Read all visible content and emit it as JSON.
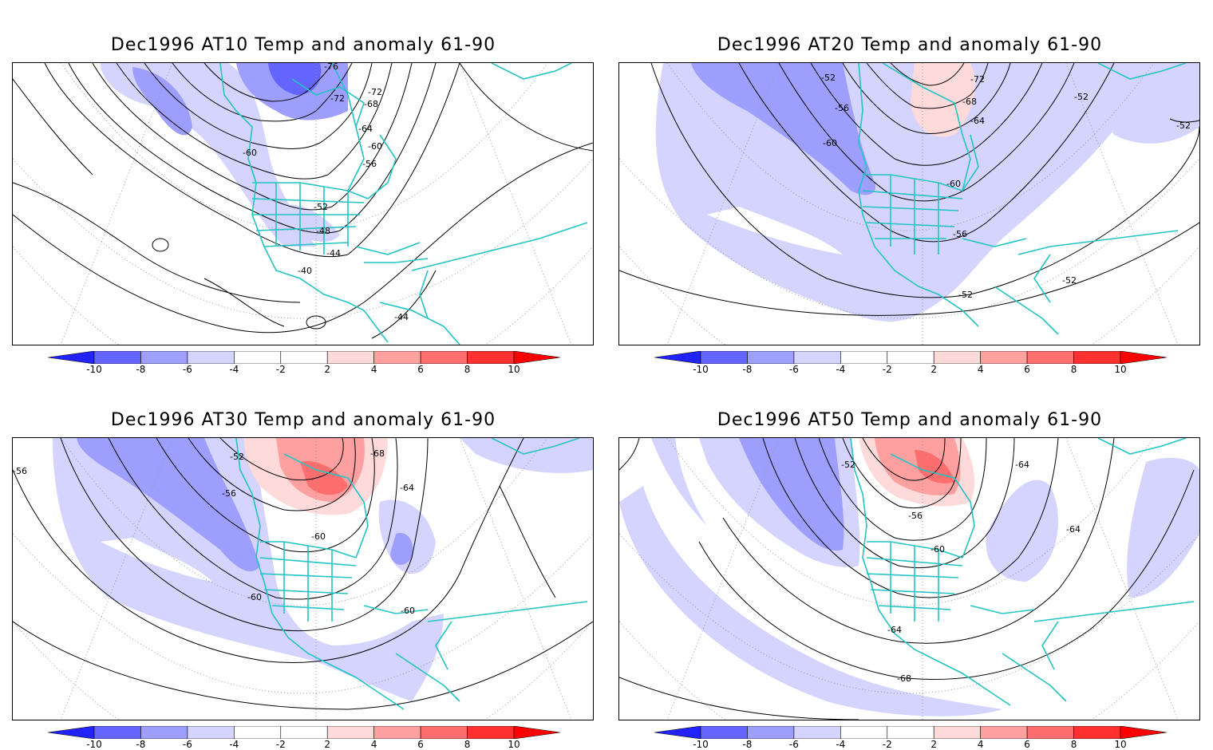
{
  "panels": [
    {
      "title": "Dec1996 AT10 Temp and anomaly 61-90",
      "contour_labels": [
        "-76",
        "-72",
        "-72",
        "-68",
        "-64",
        "-60",
        "-60",
        "-56",
        "-52",
        "-48",
        "-44",
        "-40",
        "-44"
      ]
    },
    {
      "title": "Dec1996 AT20 Temp and anomaly 61-90",
      "contour_labels": [
        "-52",
        "-72",
        "-56",
        "-68",
        "-64",
        "-60",
        "-60",
        "-52",
        "-52",
        "-56",
        "-52",
        "-52"
      ]
    },
    {
      "title": "Dec1996 AT30 Temp and anomaly 61-90",
      "contour_labels": [
        "-52",
        "-68",
        "-56",
        "-64",
        "-60",
        "-60",
        "-60",
        "-56"
      ]
    },
    {
      "title": "Dec1996 AT50 Temp and anomaly 61-90",
      "contour_labels": [
        "-52",
        "-64",
        "-56",
        "-64",
        "-60",
        "-64",
        "-68"
      ]
    }
  ],
  "colorbar": {
    "labels": [
      "-10",
      "-8",
      "-6",
      "-4",
      "-2",
      "2",
      "4",
      "6",
      "8",
      "10"
    ],
    "colors": [
      "#2222ff",
      "#6464ff",
      "#9e9eff",
      "#d4d4ff",
      "#ffffff",
      "#ffdada",
      "#ffa0a0",
      "#ff6e6e",
      "#ff3030",
      "#ff0000"
    ]
  },
  "colors": {
    "coast": "#22c4c4",
    "contour": "#000000",
    "grid": "#999999"
  }
}
